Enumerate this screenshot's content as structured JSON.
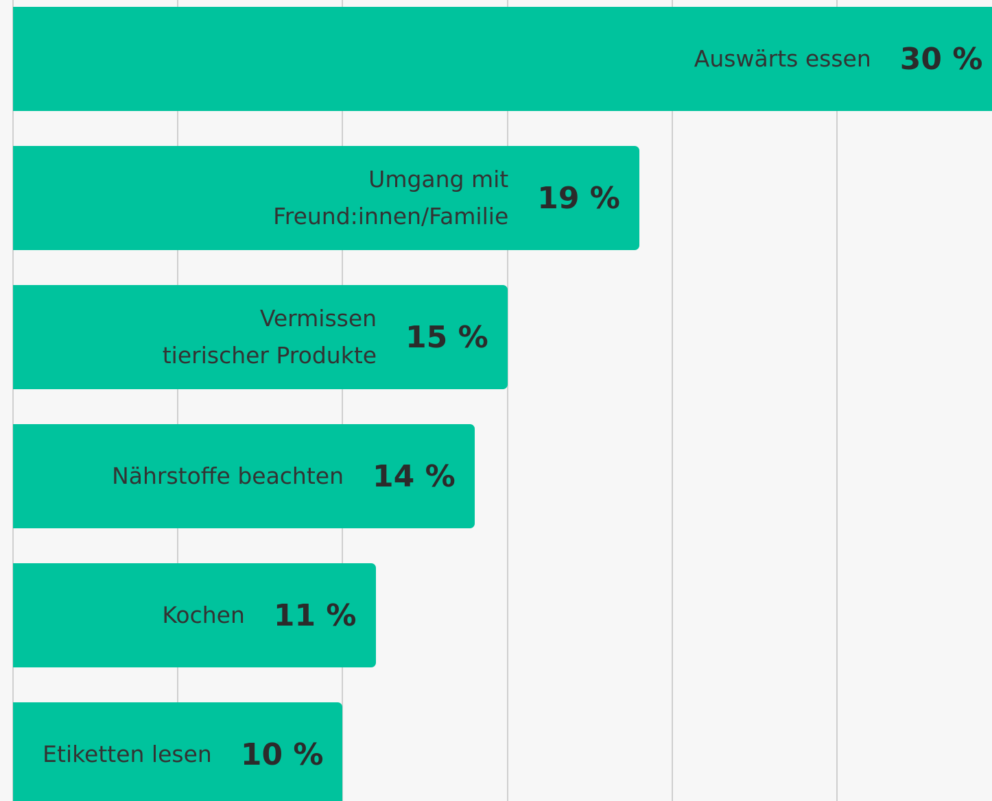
{
  "chart_data": {
    "type": "bar",
    "orientation": "horizontal",
    "categories": [
      "Auswärts essen",
      "Umgang mit\nFreund:innen/Familie",
      "Vermissen\ntierischer Produkte",
      "Nährstoffe beachten",
      "Kochen",
      "Etiketten lesen"
    ],
    "values": [
      30,
      19,
      15,
      14,
      11,
      10
    ],
    "value_labels": [
      "30 %",
      "19 %",
      "15 %",
      "14 %",
      "11 %",
      "10 %"
    ],
    "color": "#00c39d",
    "xlim": [
      0,
      29.7
    ],
    "xticks": [
      0,
      5,
      10,
      15,
      20,
      25
    ],
    "grid": true
  }
}
